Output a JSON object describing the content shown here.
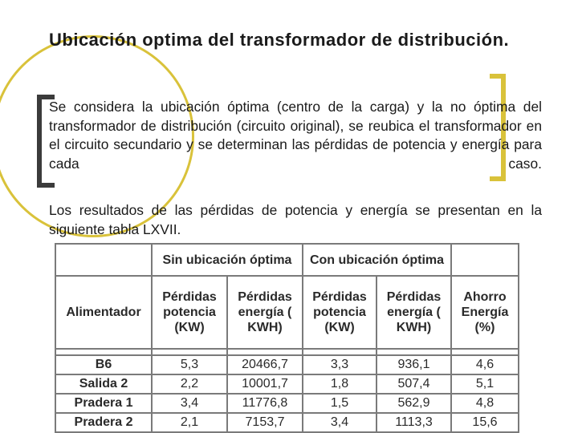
{
  "title": "Ubicación optima del transformador de distribución.",
  "paragraphs": [
    "Se considera la ubicación óptima (centro de la carga) y la no óptima del transformador de distribución (circuito original), se reubica el transformador en el circuito secundario y se determinan las pérdidas de potencia y energía para cada caso.",
    "Los resultados de las pérdidas de potencia y energía se presentan en la siguiente tabla LXVII."
  ],
  "table": {
    "group_headers": [
      "Sin ubicación óptima",
      "Con ubicación óptima"
    ],
    "columns": [
      "Alimentador",
      "Pérdidas potencia (KW)",
      "Pérdidas energía ( KWH)",
      "Pérdidas potencia (KW)",
      "Pérdidas energía ( KWH)",
      "Ahorro Energía (%)"
    ],
    "rows": [
      [
        "B6",
        "5,3",
        "20466,7",
        "3,3",
        "936,1",
        "4,6"
      ],
      [
        "Salida 2",
        "2,2",
        "10001,7",
        "1,8",
        "507,4",
        "5,1"
      ],
      [
        "Pradera 1",
        "3,4",
        "11776,8",
        "1,5",
        "562,9",
        "4,8"
      ],
      [
        "Pradera 2",
        "2,1",
        "7153,7",
        "3,4",
        "1113,3",
        "15,6"
      ]
    ]
  },
  "colors": {
    "accent_gold": "#d9c23a",
    "bracket_dark": "#3b3b3b",
    "table_border": "#7a7a7a"
  }
}
